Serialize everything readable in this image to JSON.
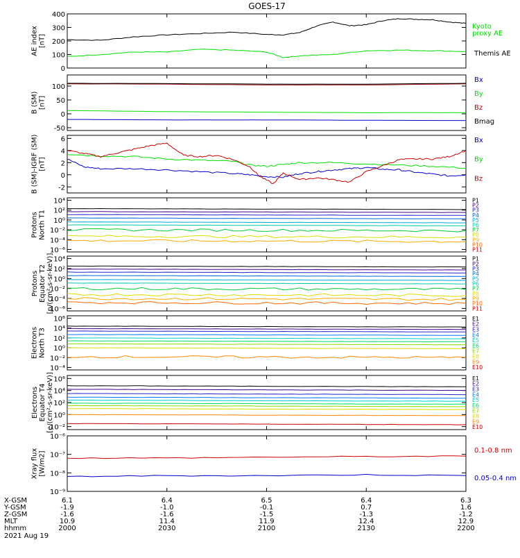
{
  "title": "GOES-17",
  "colors": {
    "black": "#000000",
    "green": "#00e000",
    "blue": "#0000cc",
    "red": "#cc0000",
    "darkred": "#990000",
    "proton_channels": [
      "#000000",
      "#440088",
      "#2222cc",
      "#0066dd",
      "#00aadd",
      "#00ccaa",
      "#00cc33",
      "#dddd00",
      "#ffaa00",
      "#ff6600",
      "#cc0000"
    ],
    "electron_channels": [
      "#000000",
      "#440088",
      "#2222cc",
      "#0077ff",
      "#00cccc",
      "#00dd66",
      "#88dd00",
      "#dddd00",
      "#ff8800",
      "#cc0000"
    ]
  },
  "footer": {
    "row_labels": [
      "X-GSM",
      "Y-GSM",
      "Z-GSM",
      "MLT",
      "hhmm"
    ],
    "date": "2021 Aug 19",
    "columns": [
      {
        "xgsm": "6.1",
        "ygsm": "-1.9",
        "zgsm": "-1.6",
        "mlt": "10.9",
        "hhmm": "2000"
      },
      {
        "xgsm": "6.4",
        "ygsm": "-1.0",
        "zgsm": "-1.6",
        "mlt": "11.4",
        "hhmm": "2030"
      },
      {
        "xgsm": "6.5",
        "ygsm": "-0.1",
        "zgsm": "-1.5",
        "mlt": "11.9",
        "hhmm": "2100"
      },
      {
        "xgsm": "6.4",
        "ygsm": "0.7",
        "zgsm": "-1.3",
        "mlt": "12.4",
        "hhmm": "2130"
      },
      {
        "xgsm": "6.3",
        "ygsm": "1.6",
        "zgsm": "-1.2",
        "mlt": "12.9",
        "hhmm": "2200"
      }
    ]
  },
  "chart_data": [
    {
      "type": "line",
      "panel": "ae",
      "ylabel": [
        "AE index",
        "[nT]"
      ],
      "ylim": [
        0,
        400
      ],
      "ticks": [
        0,
        100,
        200,
        300,
        400
      ],
      "tick_labels": [
        "0",
        "100",
        "200",
        "300",
        "400"
      ],
      "legend": [
        "Kyoto",
        "proxy AE",
        "Themis AE"
      ],
      "xlim": [
        0,
        120
      ],
      "series": [
        {
          "name": "Themis AE",
          "color": "black",
          "x": [
            0,
            10,
            20,
            30,
            40,
            50,
            60,
            65,
            70,
            75,
            80,
            85,
            90,
            95,
            100,
            105,
            110,
            115,
            120
          ],
          "values": [
            210,
            205,
            230,
            245,
            255,
            265,
            248,
            245,
            262,
            310,
            340,
            312,
            320,
            350,
            365,
            360,
            357,
            340,
            330
          ]
        },
        {
          "name": "Kyoto proxy AE",
          "color": "green",
          "x": [
            0,
            10,
            20,
            30,
            40,
            50,
            60,
            65,
            70,
            80,
            90,
            100,
            110,
            120
          ],
          "values": [
            85,
            100,
            118,
            118,
            138,
            132,
            118,
            78,
            90,
            100,
            128,
            132,
            128,
            122
          ]
        }
      ]
    },
    {
      "type": "line",
      "panel": "b_sm",
      "ylabel": [
        "B (SM)",
        "[nT]"
      ],
      "ylim": [
        -60,
        140
      ],
      "ticks": [
        -50,
        0,
        50,
        100
      ],
      "tick_labels": [
        "-50",
        "0",
        "50",
        "100"
      ],
      "legend": [
        "Bx",
        "By",
        "Bz",
        "Bmag"
      ],
      "xlim": [
        0,
        120
      ],
      "series": [
        {
          "name": "Bz",
          "color": "darkred",
          "x": [
            0,
            30,
            60,
            90,
            120
          ],
          "values": [
            108,
            107,
            104,
            104,
            108
          ]
        },
        {
          "name": "Bmag",
          "color": "black",
          "x": [
            0,
            30,
            60,
            90,
            120
          ],
          "values": [
            110,
            109,
            107,
            107,
            110
          ]
        },
        {
          "name": "By",
          "color": "green",
          "x": [
            0,
            30,
            60,
            90,
            120
          ],
          "values": [
            12,
            8,
            6,
            4,
            4
          ]
        },
        {
          "name": "Bx",
          "color": "blue",
          "x": [
            0,
            30,
            60,
            90,
            120
          ],
          "values": [
            -20,
            -22,
            -22,
            -23,
            -24
          ]
        }
      ]
    },
    {
      "type": "line",
      "panel": "b_igrf",
      "ylabel": [
        "B (SM)-IGRF (SM)",
        "[nT]"
      ],
      "ylim": [
        -3,
        6.5
      ],
      "ticks": [
        -2,
        0,
        2,
        4,
        6
      ],
      "tick_labels": [
        "-2",
        "0",
        "2",
        "4",
        "6"
      ],
      "legend": [
        "Bx",
        "By",
        "Bz"
      ],
      "xlim": [
        0,
        120
      ],
      "series": [
        {
          "name": "Bx",
          "color": "blue",
          "x": [
            0,
            5,
            10,
            20,
            30,
            40,
            50,
            55,
            60,
            65,
            70,
            75,
            80,
            85,
            90,
            95,
            100,
            105,
            110,
            115,
            120
          ],
          "values": [
            2.6,
            1.3,
            1.0,
            1.0,
            0.8,
            0.5,
            0.2,
            0,
            -0.3,
            -0.4,
            0.2,
            0.5,
            0.8,
            1.0,
            1.2,
            0.9,
            0.8,
            0.4,
            0.1,
            -0.2,
            0
          ]
        },
        {
          "name": "By",
          "color": "green",
          "x": [
            0,
            10,
            20,
            30,
            40,
            50,
            55,
            60,
            65,
            70,
            80,
            90,
            100,
            110,
            120
          ],
          "values": [
            3.4,
            3.1,
            3.0,
            2.6,
            2.4,
            2.2,
            1.6,
            1.4,
            1.7,
            2.0,
            2.0,
            1.8,
            1.6,
            1.4,
            1.1
          ]
        },
        {
          "name": "Bz",
          "color": "red",
          "x": [
            0,
            5,
            10,
            15,
            20,
            25,
            30,
            35,
            40,
            45,
            50,
            55,
            58,
            62,
            65,
            70,
            75,
            80,
            85,
            90,
            95,
            100,
            105,
            110,
            115,
            120
          ],
          "values": [
            4.0,
            3.5,
            3.0,
            3.6,
            4.2,
            4.8,
            5.2,
            3.2,
            3.0,
            3.2,
            2.5,
            1.3,
            -0.3,
            -1.5,
            0.3,
            -0.8,
            -0.5,
            -0.8,
            -1.2,
            0.5,
            1.5,
            2.5,
            2.6,
            2.6,
            3.0,
            4.0
          ]
        }
      ]
    },
    {
      "type": "line",
      "panel": "protons_north",
      "ylabel": [
        "Protons",
        "North T1"
      ],
      "yscale": "log",
      "ylim_log10": [
        -6.5,
        4.5
      ],
      "ticks_log10": [
        -6,
        -4,
        -2,
        0,
        2,
        4
      ],
      "tick_labels": [
        "10⁻⁶",
        "10⁻⁴",
        "10⁻²",
        "10⁰",
        "10²",
        "10⁴"
      ],
      "legend": [
        "P1",
        "P2",
        "P3",
        "P4",
        "P5",
        "P6",
        "P7",
        "P8",
        "P9",
        "P10",
        "P11"
      ],
      "xlim": [
        0,
        120
      ],
      "series_log10_levels": [
        2.3,
        1.7,
        1.1,
        0.4,
        -0.4,
        -1.0,
        -2.0,
        -3.3,
        -4.2,
        null,
        null
      ]
    },
    {
      "type": "line",
      "panel": "protons_equator",
      "ylabel": [
        "Protons",
        "Equator T2",
        "[p/(cm²-s-sr-keV)]"
      ],
      "yscale": "log",
      "ylim_log10": [
        -6.5,
        4.5
      ],
      "ticks_log10": [
        -6,
        -4,
        -2,
        0,
        2,
        4
      ],
      "tick_labels": [
        "10⁻⁶",
        "10⁻⁴",
        "10⁻²",
        "10⁰",
        "10²",
        "10⁴"
      ],
      "legend": [
        "P1",
        "P2",
        "P3",
        "P4",
        "P5",
        "P6",
        "P7",
        "P8",
        "P9",
        "P10",
        "P11"
      ],
      "xlim": [
        0,
        120
      ],
      "series_log10_levels": [
        2.5,
        1.9,
        1.3,
        0.6,
        -0.2,
        -0.9,
        -2.0,
        -3.2,
        -4.0,
        -4.8,
        null
      ]
    },
    {
      "type": "line",
      "panel": "electrons_north",
      "ylabel": [
        "Electrons",
        "North T3"
      ],
      "yscale": "log",
      "ylim_log10": [
        -4.5,
        6.5
      ],
      "ticks_log10": [
        -4,
        -2,
        0,
        2,
        4,
        6
      ],
      "tick_labels": [
        "10⁻⁴",
        "10⁻²",
        "10⁰",
        "10²",
        "10⁴",
        "10⁶"
      ],
      "legend": [
        "E1",
        "E2",
        "E3",
        "E4",
        "E5",
        "E6",
        "E7",
        "E8",
        "E9",
        "E10"
      ],
      "xlim": [
        0,
        120
      ],
      "series_log10_levels": [
        4.4,
        3.9,
        3.4,
        2.7,
        2.0,
        1.4,
        0.8,
        0.0,
        -1.8,
        null
      ]
    },
    {
      "type": "line",
      "panel": "electrons_equator",
      "ylabel": [
        "Electrons",
        "Equator T4",
        "[e/(cm²-s-sr-keV)]"
      ],
      "yscale": "log",
      "ylim_log10": [
        -2.5,
        6.5
      ],
      "ticks_log10": [
        -2,
        0,
        2,
        4,
        6
      ],
      "tick_labels": [
        "10⁻²",
        "10⁰",
        "10²",
        "10⁴",
        "10⁶"
      ],
      "legend": [
        "E1",
        "E2",
        "E3",
        "E4",
        "E5",
        "E6",
        "E7",
        "E8",
        "E9",
        "E10"
      ],
      "xlim": [
        0,
        120
      ],
      "series_log10_levels": [
        4.8,
        4.2,
        3.5,
        2.9,
        2.4,
        1.9,
        1.5,
        1.0,
        0.0,
        -1.5
      ]
    },
    {
      "type": "line",
      "panel": "xray",
      "ylabel": [
        "Xray flux",
        "[W/m2]"
      ],
      "yscale": "log",
      "ylim_log10": [
        -9,
        -6
      ],
      "ticks_log10": [
        -9,
        -8,
        -7,
        -6
      ],
      "tick_labels": [
        "10⁻⁹",
        "10⁻⁸",
        "10⁻⁷",
        "10⁻⁶"
      ],
      "legend": [
        "0.1-0.8 nm",
        "0.05-0.4 nm"
      ],
      "xlim": [
        0,
        120
      ],
      "series": [
        {
          "name": "0.1-0.8 nm",
          "color": "red",
          "x": [
            0,
            30,
            60,
            90,
            120
          ],
          "values_log10": [
            -7.2,
            -7.2,
            -7.15,
            -7.12,
            -7.1
          ]
        },
        {
          "name": "0.05-0.4 nm",
          "color": "blue",
          "x": [
            0,
            30,
            60,
            90,
            120
          ],
          "values_log10": [
            -8.2,
            -8.15,
            -8.15,
            -8.1,
            -8.15
          ]
        }
      ]
    }
  ]
}
